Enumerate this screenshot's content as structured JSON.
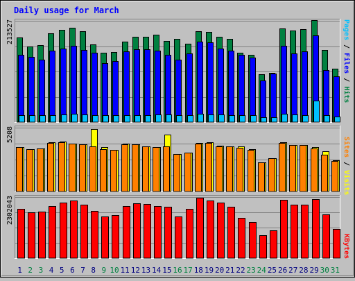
{
  "chart_data": {
    "type": "bar",
    "title": "Daily usage for March",
    "categories": [
      "1",
      "2",
      "3",
      "4",
      "5",
      "6",
      "7",
      "8",
      "9",
      "10",
      "11",
      "12",
      "13",
      "14",
      "15",
      "16",
      "17",
      "18",
      "19",
      "20",
      "21",
      "22",
      "23",
      "24",
      "25",
      "26",
      "27",
      "28",
      "29",
      "30",
      "31"
    ],
    "weekend_days": [
      2,
      3,
      9,
      10,
      16,
      17,
      23,
      24,
      30,
      31
    ],
    "colors": {
      "hits": "#008040",
      "files": "#0000ff",
      "pages": "#00c0ff",
      "sites": "#ff8000",
      "visits": "#ffff00",
      "kbytes": "#ff0000",
      "title": "#0000ff",
      "weekday_label": "#000080",
      "weekend_label": "#008040"
    },
    "panels": [
      {
        "id": "hits",
        "y_label": "213527",
        "ylim": [
          0,
          213527
        ],
        "legend": [
          "Pages",
          "/",
          "Files",
          "/",
          "Hits"
        ],
        "legend_colors": [
          "#00c0ff",
          "#000000",
          "#0000ff",
          "#000000",
          "#008040"
        ],
        "series": [
          {
            "name": "Hits",
            "values": [
              178000,
              159000,
              162000,
              187000,
              194000,
              199000,
              191000,
              164000,
              146000,
              148000,
              170000,
              180000,
              180000,
              184000,
              171000,
              176000,
              165000,
              191000,
              190000,
              180000,
              176000,
              146000,
              142000,
              101000,
              104000,
              198000,
              193000,
              196000,
              215000,
              152000,
              112000
            ]
          },
          {
            "name": "Files",
            "values": [
              142000,
              137000,
              132000,
              150000,
              155000,
              161000,
              152000,
              146000,
              125000,
              128000,
              149000,
              154000,
              154000,
              151000,
              142000,
              131000,
              145000,
              170000,
              168000,
              155000,
              151000,
              142000,
              136000,
              88000,
              102000,
              161000,
              145000,
              149000,
              183000,
              110000,
              97000
            ]
          },
          {
            "name": "Pages",
            "values": [
              15000,
              15000,
              15000,
              15000,
              16000,
              17000,
              16000,
              15000,
              14000,
              14000,
              14000,
              15000,
              15000,
              16000,
              16000,
              14000,
              15000,
              17000,
              16000,
              16000,
              15000,
              15000,
              14000,
              10000,
              10000,
              18000,
              16000,
              15000,
              46000,
              15000,
              11000
            ]
          }
        ]
      },
      {
        "id": "sites",
        "y_label": "5208",
        "ylim": [
          0,
          5208
        ],
        "legend": [
          "Sites",
          "/",
          "Visits"
        ],
        "legend_colors": [
          "#ff8000",
          "#000000",
          "#ffff00"
        ],
        "series": [
          {
            "name": "Visits",
            "values": [
              3600,
              3480,
              3500,
              4000,
              4100,
              3900,
              3850,
              5100,
              3650,
              3400,
              3900,
              3850,
              3700,
              3600,
              4650,
              3050,
              3150,
              3950,
              4000,
              3750,
              3700,
              3700,
              3450,
              2400,
              2700,
              4000,
              3800,
              3800,
              3600,
              3300,
              2550
            ]
          },
          {
            "name": "Sites",
            "values": [
              3600,
              3480,
              3500,
              3950,
              4000,
              3900,
              3850,
              3700,
              3450,
              3400,
              3850,
              3850,
              3700,
              3600,
              3700,
              3050,
              3150,
              3900,
              3950,
              3700,
              3700,
              3550,
              3400,
              2400,
              2700,
              3950,
              3800,
              3800,
              3500,
              3000,
              2500
            ]
          }
        ]
      },
      {
        "id": "kbytes",
        "y_label": "2302043",
        "ylim": [
          0,
          2302043
        ],
        "legend": [
          "KBytes"
        ],
        "legend_colors": [
          "#ff0000"
        ],
        "series": [
          {
            "name": "KBytes",
            "values": [
              1860000,
              1730000,
              1760000,
              1970000,
              2080000,
              2160000,
              2010000,
              1790000,
              1580000,
              1620000,
              1950000,
              2060000,
              2030000,
              1960000,
              1940000,
              1570000,
              1860000,
              2270000,
              2180000,
              2090000,
              1930000,
              1520000,
              1360000,
              860000,
              1040000,
              2210000,
              2010000,
              2010000,
              2220000,
              1640000,
              1090000
            ]
          }
        ]
      }
    ]
  }
}
